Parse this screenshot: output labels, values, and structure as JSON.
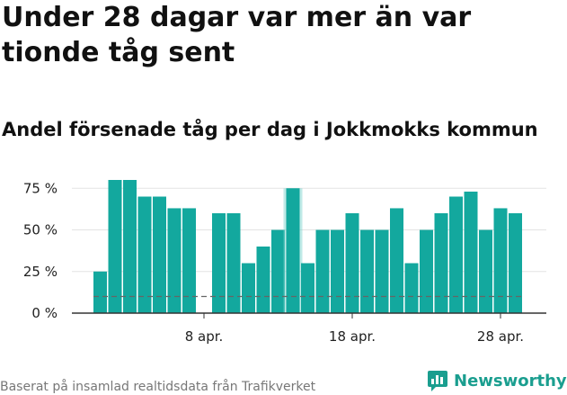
{
  "title": "Under 28 dagar var mer än var tionde tåg sent",
  "subtitle": "Andel försenade tåg per dag i Jokkmokks kommun",
  "footer": "Baserat på insamlad realtidsdata från Trafikverket",
  "logo": {
    "text": "Newsworthy",
    "icon": "newsworthy-chart-icon"
  },
  "colors": {
    "bar": "#13a89e",
    "highlight": "#7fd6cf",
    "grid": "#e3e3e3",
    "reference": "#666666",
    "logo": "#1a9e8f"
  },
  "chart_data": {
    "type": "bar",
    "title": "Andel försenade tåg per dag i Jokkmokks kommun",
    "xlabel": "",
    "ylabel": "",
    "ylim": [
      0,
      80
    ],
    "y_ticks": [
      0,
      25,
      50,
      75
    ],
    "y_tick_labels": [
      "0 %",
      "25 %",
      "50 %",
      "75 %"
    ],
    "x_tick_labels": [
      {
        "label": "8 apr.",
        "day": 8
      },
      {
        "label": "18 apr.",
        "day": 18
      },
      {
        "label": "28 apr.",
        "day": 28
      }
    ],
    "days": [
      1,
      2,
      3,
      4,
      5,
      6,
      7,
      8,
      9,
      10,
      11,
      12,
      13,
      14,
      15,
      16,
      17,
      18,
      19,
      20,
      21,
      22,
      23,
      24,
      25,
      26,
      27,
      28,
      29,
      30
    ],
    "values": [
      25,
      80,
      80,
      70,
      70,
      63,
      63,
      0,
      60,
      60,
      30,
      40,
      50,
      75,
      30,
      50,
      50,
      60,
      50,
      50,
      63,
      30,
      50,
      60,
      70,
      73,
      50,
      63,
      60,
      null
    ],
    "highlight_day": 14,
    "reference_line": 10,
    "grid": true
  }
}
